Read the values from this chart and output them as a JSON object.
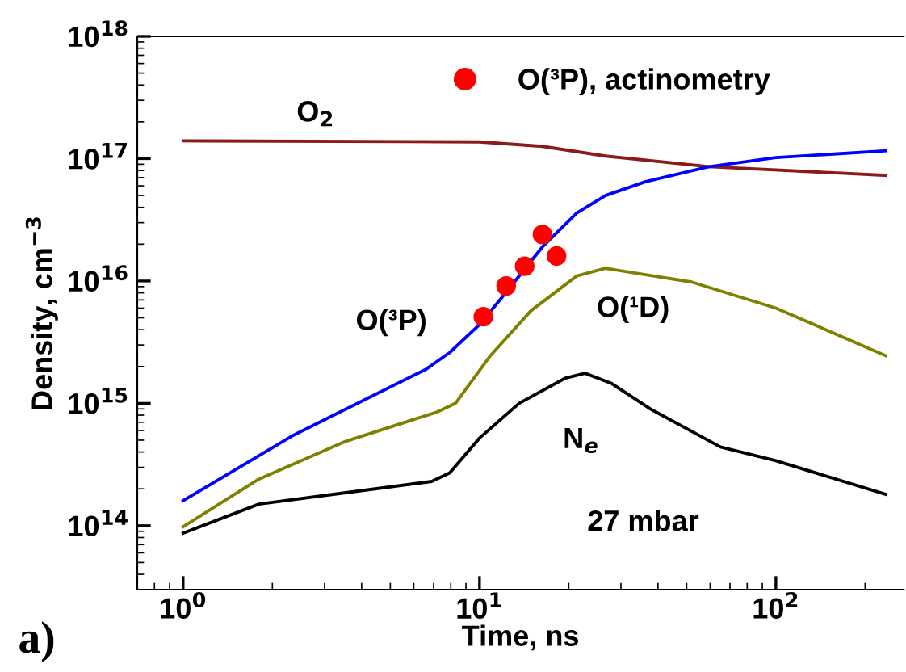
{
  "chart_data": {
    "type": "line",
    "xlabel": "Time, ns",
    "ylabel": "Density, cm$^{−3}$",
    "log": "xy",
    "xlim": [
      0.7,
      270
    ],
    "ylim": [
      30000000000000.0,
      1e+18
    ],
    "xticks": [
      {
        "value": 1,
        "label": "10$^{0}$"
      },
      {
        "value": 10,
        "label": "10$^{1}$"
      },
      {
        "value": 100,
        "label": "10$^{2}$"
      }
    ],
    "yticks": [
      {
        "value": 100000000000000.0,
        "label": "10$^{14}$"
      },
      {
        "value": 1000000000000000.0,
        "label": "10$^{15}$"
      },
      {
        "value": 1e+16,
        "label": "10$^{16}$"
      },
      {
        "value": 1e+17,
        "label": "10$^{17}$"
      },
      {
        "value": 1e+18,
        "label": "10$^{18}$"
      }
    ],
    "grid": false,
    "legend": "top right",
    "marker": "none",
    "line_style": "solid",
    "series": [
      {
        "name": "O$_{2}$",
        "color": "#8b1a1a",
        "x": [
          1,
          10,
          16.3,
          26.6,
          59.5,
          235
        ],
        "values": [
          1.4e+17,
          1.37e+17,
          1.26e+17,
          1.05e+17,
          8.6e+16,
          7.3e+16
        ]
      },
      {
        "name": "O(³P)",
        "color": "#0000ff",
        "x": [
          1,
          2.36,
          6.6,
          7.93,
          10,
          12.4,
          16.3,
          21.3,
          26.6,
          36.4,
          59.5,
          100,
          235
        ],
        "values": [
          160000000000000.0,
          550000000000000.0,
          1900000000000000.0,
          2600000000000000.0,
          4400000000000000.0,
          8300000000000000.0,
          1.9e+16,
          3.6e+16,
          5e+16,
          6.5e+16,
          8.6e+16,
          1.02e+17,
          1.16e+17
        ]
      },
      {
        "name": "O(¹D)",
        "color": "#808000",
        "x": [
          1,
          1.8,
          3.54,
          7.2,
          8.3,
          10.8,
          14.9,
          21.3,
          26.6,
          52,
          100,
          235
        ],
        "values": [
          98000000000000.0,
          240000000000000.0,
          490000000000000.0,
          850000000000000.0,
          1000000000000000.0,
          2400000000000000.0,
          5700000000000000.0,
          1.1e+16,
          1.27e+16,
          9800000000000000.0,
          6000000000000000.0,
          2450000000000000.0
        ]
      },
      {
        "name": "N$_{e}$",
        "color": "#000000",
        "x": [
          1,
          1.8,
          3.54,
          6.9,
          7.93,
          10,
          13.6,
          19.4,
          22.7,
          27.8,
          38,
          65,
          100,
          235
        ],
        "values": [
          87000000000000.0,
          150000000000000.0,
          186000000000000.0,
          230000000000000.0,
          270000000000000.0,
          520000000000000.0,
          1000000000000000.0,
          1600000000000000.0,
          1760000000000000.0,
          1460000000000000.0,
          890000000000000.0,
          440000000000000.0,
          340000000000000.0,
          180000000000000.0
        ]
      },
      {
        "name": "O(³P), actinometry",
        "type": "scatter",
        "marker": "circle",
        "color": "#ff0000",
        "x": [
          10.3,
          12.3,
          14.2,
          16.3,
          18.2
        ],
        "values": [
          5100000000000000.0,
          9100000000000000.0,
          1.32e+16,
          2.4e+16,
          1.6e+16
        ]
      }
    ],
    "annotations": [
      "27 mbar",
      "a)"
    ]
  }
}
